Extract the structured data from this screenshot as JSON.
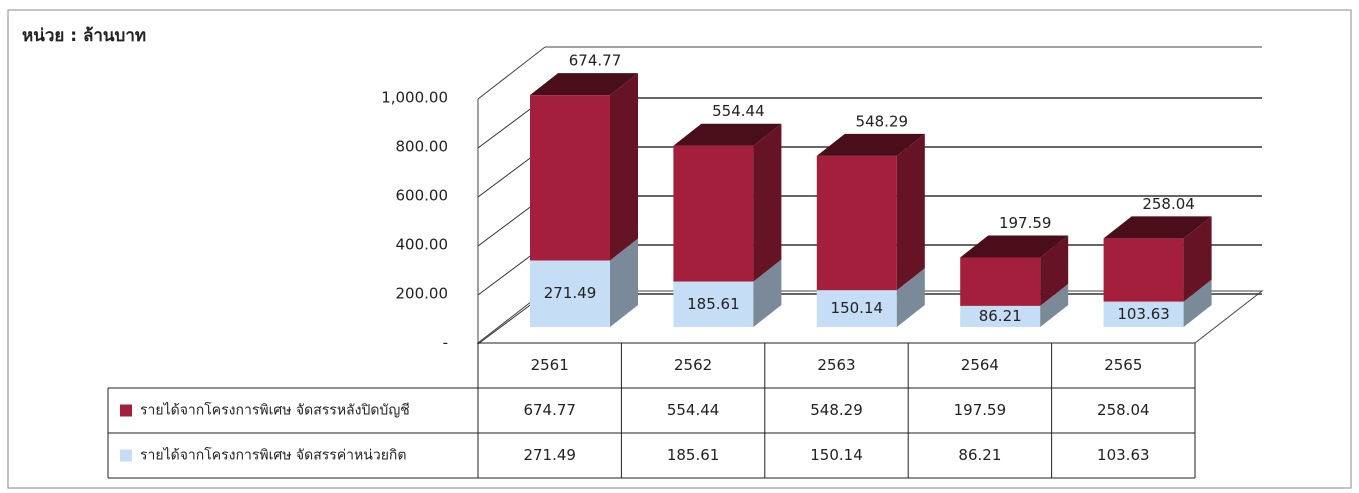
{
  "chart_data": {
    "type": "bar3d_stacked",
    "unit_label": "หน่วย : ล้านบาท",
    "categories": [
      "2561",
      "2562",
      "2563",
      "2564",
      "2565"
    ],
    "series": [
      {
        "name": "รายได้จากโครงการพิเศษ จัดสรรค่าหน่วยกิต",
        "color": "#c6def5",
        "values": [
          271.49,
          185.61,
          150.14,
          86.21,
          103.63
        ]
      },
      {
        "name": "รายได้จากโครงการพิเศษ จัดสรรหลังปิดบัญชี",
        "color": "#a41f3c",
        "values": [
          674.77,
          554.44,
          548.29,
          197.59,
          258.04
        ]
      }
    ],
    "ylim": [
      0,
      1200
    ],
    "yticks": [
      {
        "value": 0,
        "label": "-"
      },
      {
        "value": 200,
        "label": "200.00"
      },
      {
        "value": 400,
        "label": "400.00"
      },
      {
        "value": 600,
        "label": "600.00"
      },
      {
        "value": 800,
        "label": "800.00"
      },
      {
        "value": 1000,
        "label": "1,000.00"
      }
    ],
    "grid": true
  }
}
